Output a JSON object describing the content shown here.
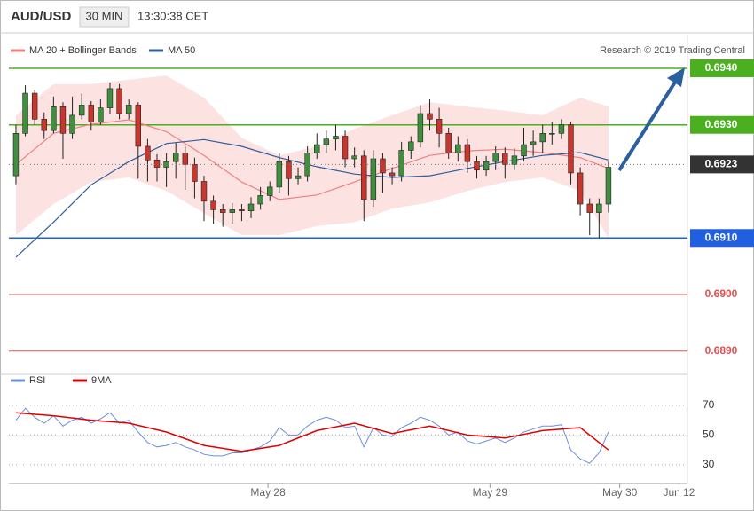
{
  "header": {
    "symbol": "AUD/USD",
    "interval": "30 MIN",
    "time": "13:30:38 CET",
    "credit": "Research © 2019 Trading Central"
  },
  "chart_data": [
    {
      "type": "candlestick",
      "xlim": [
        -0.75,
        71.4
      ],
      "ylim": [
        0.68862,
        0.69458
      ],
      "up_color": "#3f8f3f",
      "down_color": "#c8372d",
      "open": [
        0.6921,
        0.69285,
        0.69356,
        0.6931,
        0.6929,
        0.69332,
        0.69285,
        0.69317,
        0.69335,
        0.69305,
        0.6933,
        0.69364,
        0.6932,
        0.69335,
        0.69262,
        0.69238,
        0.69225,
        0.69235,
        0.6925,
        0.6923,
        0.692,
        0.69165,
        0.6915,
        0.69145,
        0.6915,
        0.69148,
        0.6916,
        0.69175,
        0.6919,
        0.69235,
        0.69205,
        0.6921,
        0.6925,
        0.69265,
        0.69275,
        0.6928,
        0.6924,
        0.69245,
        0.69168,
        0.6924,
        0.69215,
        0.6921,
        0.69255,
        0.6927,
        0.6932,
        0.6931,
        0.69285,
        0.6925,
        0.69265,
        0.69235,
        0.6922,
        0.69235,
        0.6925,
        0.6923,
        0.69245,
        0.69265,
        0.6927,
        0.69285,
        0.69285,
        0.693,
        0.69215,
        0.6916,
        0.69145,
        0.6916
      ],
      "high": [
        0.693,
        0.6937,
        0.69362,
        0.69322,
        0.6935,
        0.6934,
        0.6935,
        0.69355,
        0.69342,
        0.69345,
        0.69375,
        0.69372,
        0.69345,
        0.6934,
        0.69275,
        0.69248,
        0.6925,
        0.69268,
        0.69262,
        0.69242,
        0.6921,
        0.69175,
        0.6916,
        0.69162,
        0.6916,
        0.69172,
        0.6919,
        0.692,
        0.6925,
        0.69245,
        0.69225,
        0.69262,
        0.69285,
        0.6929,
        0.693,
        0.6929,
        0.6926,
        0.69255,
        0.69255,
        0.6925,
        0.69225,
        0.6927,
        0.6928,
        0.69335,
        0.69345,
        0.6933,
        0.69295,
        0.6928,
        0.69275,
        0.69245,
        0.69245,
        0.69262,
        0.6926,
        0.69258,
        0.69295,
        0.6929,
        0.693,
        0.69305,
        0.6931,
        0.69305,
        0.69225,
        0.6917,
        0.6917,
        0.69235
      ],
      "low": [
        0.69195,
        0.6928,
        0.693,
        0.69275,
        0.69285,
        0.6924,
        0.69275,
        0.6931,
        0.6929,
        0.693,
        0.6932,
        0.6931,
        0.6931,
        0.69205,
        0.692,
        0.692,
        0.6919,
        0.69205,
        0.69185,
        0.6917,
        0.6913,
        0.69125,
        0.6912,
        0.69125,
        0.6913,
        0.69135,
        0.6915,
        0.69165,
        0.6918,
        0.69175,
        0.69195,
        0.692,
        0.6924,
        0.6925,
        0.69255,
        0.69225,
        0.69225,
        0.6913,
        0.69155,
        0.6918,
        0.69195,
        0.692,
        0.6924,
        0.6926,
        0.6929,
        0.6926,
        0.6924,
        0.69235,
        0.69215,
        0.69205,
        0.6921,
        0.6922,
        0.69205,
        0.6922,
        0.69235,
        0.69245,
        0.6925,
        0.69265,
        0.69275,
        0.69195,
        0.6914,
        0.69105,
        0.691,
        0.69145
      ],
      "close": [
        0.69285,
        0.69356,
        0.6931,
        0.6929,
        0.69332,
        0.69285,
        0.69317,
        0.69335,
        0.69305,
        0.6933,
        0.69364,
        0.6932,
        0.69335,
        0.69262,
        0.69238,
        0.69225,
        0.69235,
        0.6925,
        0.6923,
        0.692,
        0.69165,
        0.6915,
        0.69145,
        0.6915,
        0.69148,
        0.6916,
        0.69175,
        0.6919,
        0.69235,
        0.69205,
        0.6921,
        0.6925,
        0.69265,
        0.69275,
        0.6928,
        0.6924,
        0.69245,
        0.69168,
        0.6924,
        0.69215,
        0.6921,
        0.69255,
        0.6927,
        0.6932,
        0.6931,
        0.69285,
        0.6925,
        0.69265,
        0.69235,
        0.6922,
        0.69235,
        0.6925,
        0.6923,
        0.69245,
        0.69265,
        0.6927,
        0.69285,
        0.69285,
        0.693,
        0.69215,
        0.6916,
        0.69145,
        0.6916,
        0.69225
      ],
      "overlay_x": [
        0,
        4,
        8,
        12,
        16,
        20,
        24,
        28,
        32,
        36,
        40,
        44,
        48,
        52,
        56,
        60,
        63
      ],
      "bollinger": {
        "name": "MA 20 + Bollinger Bands",
        "color": "#f08080",
        "band_color": "#fde2e2",
        "ma": [
          0.6923,
          0.69285,
          0.69301,
          0.69309,
          0.69288,
          0.69246,
          0.69199,
          0.69168,
          0.69176,
          0.69199,
          0.69223,
          0.69246,
          0.69254,
          0.69257,
          0.69251,
          0.69242,
          0.69223
        ],
        "upper": [
          0.69317,
          0.69372,
          0.69372,
          0.6938,
          0.69387,
          0.69348,
          0.69277,
          0.69246,
          0.69262,
          0.69293,
          0.69317,
          0.6934,
          0.69332,
          0.69325,
          0.69317,
          0.69348,
          0.69332
        ],
        "lower": [
          0.69105,
          0.6916,
          0.69199,
          0.69207,
          0.69183,
          0.69144,
          0.69105,
          0.69105,
          0.69121,
          0.69128,
          0.69152,
          0.69163,
          0.69183,
          0.69199,
          0.69207,
          0.69183,
          0.691
        ]
      },
      "ma50": {
        "name": "MA 50",
        "color": "#2c5f9e",
        "values": [
          0.69066,
          0.69128,
          0.69194,
          0.69235,
          0.69267,
          0.69274,
          0.69262,
          0.69242,
          0.69226,
          0.69213,
          0.69207,
          0.6921,
          0.69223,
          0.69235,
          0.69246,
          0.69251,
          0.69238
        ]
      },
      "levels": [
        {
          "value": 0.694,
          "label": "0.6940",
          "color": "#4caf20",
          "boxed": true
        },
        {
          "value": 0.693,
          "label": "0.6930",
          "color": "#4caf20",
          "boxed": true
        },
        {
          "value": 0.691,
          "label": "0.6910",
          "color": "#2060e0",
          "boxed": true
        },
        {
          "value": 0.69,
          "label": "0.6900",
          "color": "#e05050",
          "boxed": false
        },
        {
          "value": 0.689,
          "label": "0.6890",
          "color": "#e05050",
          "boxed": false
        }
      ],
      "current": {
        "value": 0.6923,
        "label": "0.6923",
        "color": "#333333"
      }
    },
    {
      "type": "line",
      "xlim": [
        -0.75,
        71.4
      ],
      "ylim": [
        23.4,
        89
      ],
      "yticks": [
        30,
        50,
        70
      ],
      "xticks": [
        {
          "value": 26.8,
          "label": "May 28"
        },
        {
          "value": 50.4,
          "label": "May 29"
        },
        {
          "value": 64.2,
          "label": "May 30"
        },
        {
          "value": 70.5,
          "label": "Jun 12"
        }
      ],
      "series": [
        {
          "name": "RSI",
          "color": "#6a8fdc",
          "x": [
            0,
            1,
            2,
            3,
            4,
            5,
            6,
            7,
            8,
            9,
            10,
            11,
            12,
            13,
            14,
            15,
            16,
            17,
            18,
            19,
            20,
            21,
            22,
            23,
            24,
            25,
            26,
            27,
            28,
            29,
            30,
            31,
            32,
            33,
            34,
            35,
            36,
            37,
            38,
            39,
            40,
            41,
            42,
            43,
            44,
            45,
            46,
            47,
            48,
            49,
            50,
            51,
            52,
            53,
            54,
            55,
            56,
            57,
            58,
            59,
            60,
            61,
            62,
            63
          ],
          "values": [
            60,
            68,
            62,
            58,
            63,
            56,
            60,
            62,
            58,
            61,
            65,
            58,
            60,
            52,
            45,
            42,
            43,
            45,
            42,
            40,
            37,
            36,
            36,
            38,
            38,
            40,
            42,
            46,
            55,
            50,
            50,
            56,
            60,
            62,
            60,
            55,
            56,
            42,
            55,
            50,
            49,
            55,
            58,
            62,
            60,
            56,
            50,
            52,
            46,
            44,
            46,
            48,
            45,
            48,
            52,
            54,
            56,
            56,
            57,
            40,
            34,
            31,
            38,
            52
          ]
        },
        {
          "name": "9MA",
          "color": "#e00000",
          "x": [
            0,
            4,
            8,
            12,
            16,
            20,
            24,
            28,
            32,
            36,
            40,
            44,
            48,
            52,
            56,
            60,
            63
          ],
          "values": [
            65,
            63,
            60,
            58,
            52,
            43,
            39,
            43,
            53,
            58,
            51,
            56,
            50,
            48,
            53,
            55,
            40
          ]
        }
      ]
    }
  ]
}
